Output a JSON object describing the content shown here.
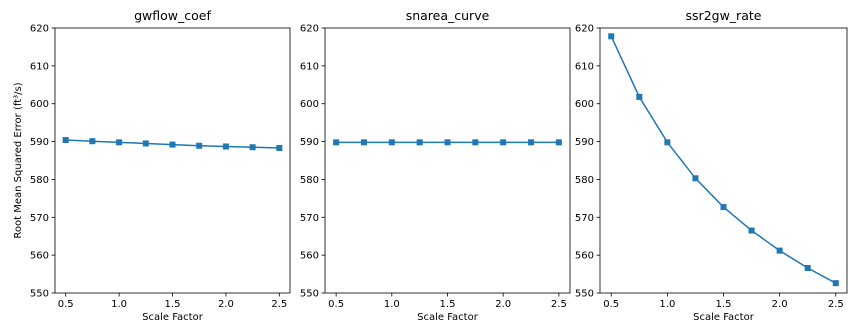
{
  "figure": {
    "ylabel": "Root Mean Squared Error (ft³/s)",
    "line_color": "#1f77b4"
  },
  "chart_data": [
    {
      "type": "line",
      "title": "gwflow_coef",
      "xlabel": "Scale Factor",
      "ylabel": "Root Mean Squared Error (ft³/s)",
      "x": [
        0.5,
        0.75,
        1.0,
        1.25,
        1.5,
        1.75,
        2.0,
        2.25,
        2.5
      ],
      "y": [
        590.4,
        590.1,
        589.8,
        589.5,
        589.2,
        588.9,
        588.7,
        588.5,
        588.3
      ],
      "xlim": [
        0.4,
        2.6
      ],
      "ylim": [
        550,
        620
      ],
      "xticks": [
        "0.5",
        "1.0",
        "1.5",
        "2.0",
        "2.5"
      ],
      "yticks": [
        "550",
        "560",
        "570",
        "580",
        "590",
        "600",
        "610",
        "620"
      ],
      "marker": "square",
      "grid": false
    },
    {
      "type": "line",
      "title": "snarea_curve",
      "xlabel": "Scale Factor",
      "ylabel": "",
      "x": [
        0.5,
        0.75,
        1.0,
        1.25,
        1.5,
        1.75,
        2.0,
        2.25,
        2.5
      ],
      "y": [
        589.8,
        589.8,
        589.8,
        589.8,
        589.8,
        589.8,
        589.8,
        589.8,
        589.8
      ],
      "xlim": [
        0.4,
        2.6
      ],
      "ylim": [
        550,
        620
      ],
      "xticks": [
        "0.5",
        "1.0",
        "1.5",
        "2.0",
        "2.5"
      ],
      "yticks": [
        "550",
        "560",
        "570",
        "580",
        "590",
        "600",
        "610",
        "620"
      ],
      "marker": "square",
      "grid": false
    },
    {
      "type": "line",
      "title": "ssr2gw_rate",
      "xlabel": "Scale Factor",
      "ylabel": "",
      "x": [
        0.5,
        0.75,
        1.0,
        1.25,
        1.5,
        1.75,
        2.0,
        2.25,
        2.5
      ],
      "y": [
        617.8,
        601.8,
        589.8,
        580.3,
        572.7,
        566.5,
        561.2,
        556.6,
        552.6
      ],
      "xlim": [
        0.4,
        2.6
      ],
      "ylim": [
        550,
        620
      ],
      "xticks": [
        "0.5",
        "1.0",
        "1.5",
        "2.0",
        "2.5"
      ],
      "yticks": [
        "550",
        "560",
        "570",
        "580",
        "590",
        "600",
        "610",
        "620"
      ],
      "marker": "square",
      "grid": false
    }
  ]
}
